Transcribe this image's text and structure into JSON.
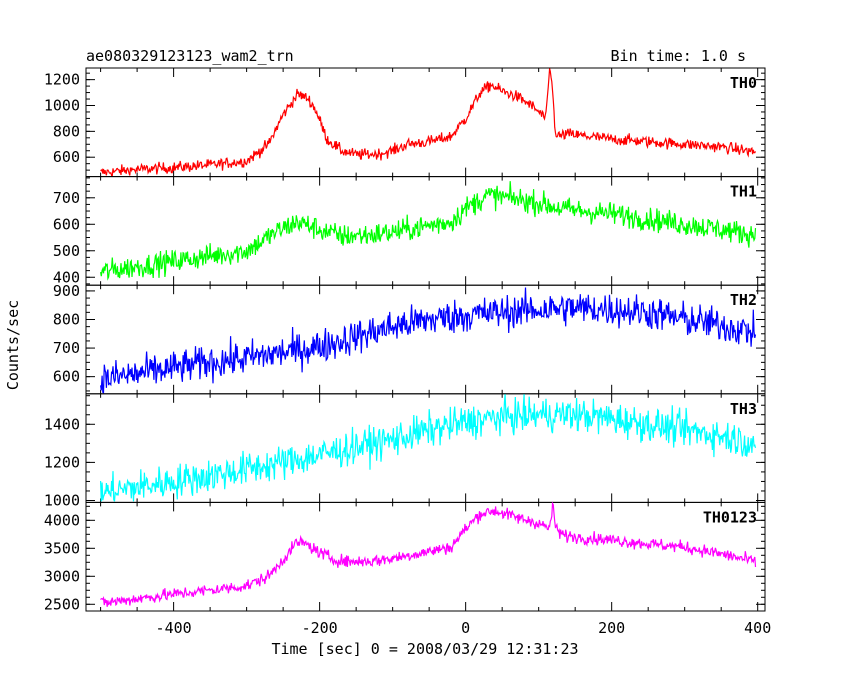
{
  "header": {
    "title": "ae080329123123_wam2_trn",
    "bin_time": "Bin time: 1.0 s"
  },
  "axes": {
    "ylabel": "Counts/sec",
    "xlabel": "Time [sec] 0 = 2008/03/29 12:31:23"
  },
  "chart_data": {
    "type": "line",
    "xlim": [
      -520,
      410
    ],
    "x_ticks": [
      -400,
      -200,
      0,
      200,
      400
    ],
    "x_range": [
      -500,
      397
    ],
    "grid": false,
    "panels": [
      {
        "name": "TH0",
        "color": "#ff0000",
        "ylim": [
          450,
          1290
        ],
        "y_ticks": [
          600,
          800,
          1000,
          1200
        ],
        "noise": 22,
        "x": [
          -500,
          -450,
          -400,
          -350,
          -300,
          -270,
          -250,
          -230,
          -215,
          -205,
          -190,
          -170,
          -150,
          -120,
          -100,
          -80,
          -50,
          -20,
          0,
          20,
          35,
          50,
          70,
          90,
          110,
          115,
          118,
          122,
          125,
          140,
          170,
          200,
          250,
          300,
          350,
          397
        ],
        "y": [
          480,
          505,
          520,
          540,
          570,
          700,
          930,
          1090,
          1050,
          960,
          740,
          650,
          620,
          625,
          650,
          700,
          720,
          760,
          900,
          1100,
          1160,
          1110,
          1070,
          1000,
          900,
          1280,
          1200,
          850,
          760,
          780,
          760,
          740,
          720,
          700,
          680,
          640
        ]
      },
      {
        "name": "TH1",
        "color": "#00ff00",
        "ylim": [
          370,
          780
        ],
        "y_ticks": [
          400,
          500,
          600,
          700
        ],
        "noise": 22,
        "x": [
          -500,
          -450,
          -400,
          -350,
          -300,
          -260,
          -230,
          -200,
          -170,
          -130,
          -100,
          -60,
          -20,
          0,
          30,
          60,
          100,
          130,
          160,
          200,
          250,
          300,
          350,
          397
        ],
        "y": [
          420,
          440,
          460,
          480,
          500,
          570,
          610,
          580,
          555,
          560,
          570,
          590,
          610,
          660,
          710,
          700,
          680,
          660,
          650,
          640,
          620,
          600,
          580,
          560
        ]
      },
      {
        "name": "TH2",
        "color": "#0000ff",
        "ylim": [
          540,
          920
        ],
        "y_ticks": [
          600,
          700,
          800,
          900
        ],
        "noise": 30,
        "x": [
          -500,
          -450,
          -400,
          -350,
          -300,
          -250,
          -200,
          -150,
          -100,
          -50,
          0,
          50,
          100,
          150,
          200,
          250,
          300,
          350,
          397
        ],
        "y": [
          590,
          610,
          630,
          650,
          665,
          685,
          705,
          740,
          775,
          800,
          815,
          825,
          835,
          840,
          835,
          825,
          800,
          780,
          755
        ]
      },
      {
        "name": "TH3",
        "color": "#00ffff",
        "ylim": [
          990,
          1560
        ],
        "y_ticks": [
          1000,
          1200,
          1400
        ],
        "noise": 45,
        "x": [
          -500,
          -450,
          -400,
          -350,
          -300,
          -250,
          -200,
          -150,
          -100,
          -50,
          0,
          50,
          100,
          150,
          200,
          250,
          300,
          350,
          397
        ],
        "y": [
          1040,
          1070,
          1100,
          1130,
          1165,
          1200,
          1240,
          1280,
          1320,
          1370,
          1410,
          1440,
          1450,
          1450,
          1430,
          1400,
          1370,
          1340,
          1300
        ]
      },
      {
        "name": "TH0123",
        "color": "#ff00ff",
        "ylim": [
          2380,
          4320
        ],
        "y_ticks": [
          2500,
          3000,
          3500,
          4000
        ],
        "noise": 55,
        "x": [
          -500,
          -450,
          -400,
          -350,
          -300,
          -270,
          -250,
          -230,
          -215,
          -200,
          -180,
          -160,
          -130,
          -100,
          -60,
          -20,
          0,
          20,
          40,
          70,
          100,
          115,
          119,
          123,
          130,
          150,
          200,
          250,
          300,
          350,
          397
        ],
        "y": [
          2520,
          2600,
          2680,
          2750,
          2830,
          3000,
          3300,
          3620,
          3550,
          3420,
          3300,
          3260,
          3270,
          3320,
          3420,
          3520,
          3850,
          4120,
          4170,
          4050,
          3950,
          3850,
          4250,
          3900,
          3750,
          3700,
          3650,
          3580,
          3520,
          3400,
          3260
        ]
      }
    ]
  }
}
